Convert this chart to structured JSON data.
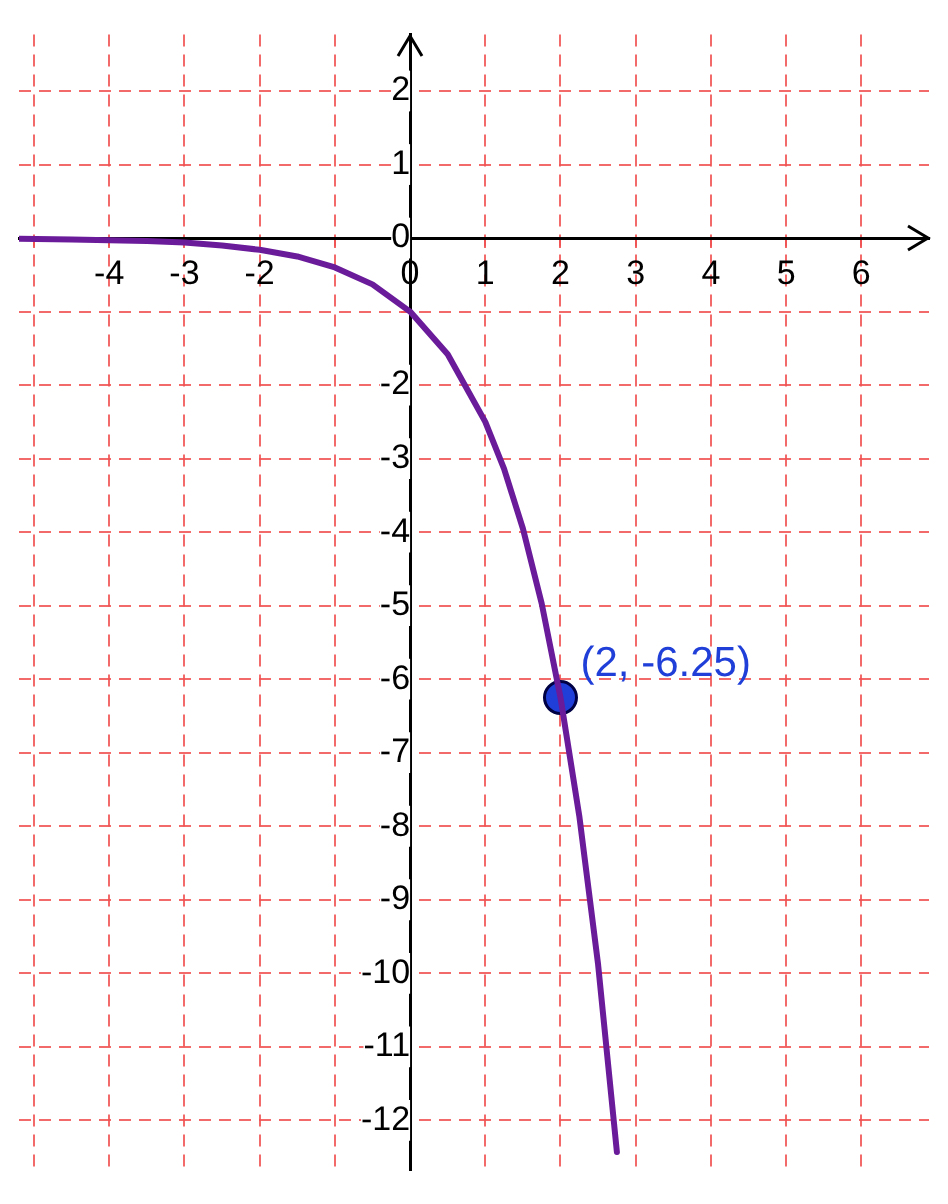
{
  "chart_data": {
    "type": "line",
    "xlim": [
      -5.2,
      6.9
    ],
    "ylim": [
      -12.67,
      2.77
    ],
    "xticks": [
      {
        "value": -5,
        "label": null
      },
      -4,
      -3,
      -2,
      {
        "value": -1,
        "label": null
      },
      0,
      1,
      2,
      3,
      4,
      5,
      6
    ],
    "yticks": [
      -12,
      -11,
      -10,
      -9,
      -8,
      -7,
      -6,
      -5,
      -4,
      -3,
      -2,
      {
        "value": -1,
        "label": null
      },
      0,
      1,
      2
    ],
    "grid": true,
    "legend": false,
    "series": [
      {
        "type": "line",
        "color": "#6a1b9a",
        "marker": "none",
        "line_style": "solid",
        "x": [
          -5.2,
          -4.5,
          -4,
          -3.5,
          -3,
          -2.5,
          -2,
          -1.5,
          -1,
          -0.5,
          0,
          0.5,
          1,
          1.25,
          1.5,
          1.75,
          2,
          2.25,
          2.5,
          2.75
        ],
        "values": [
          -0.01,
          -0.02,
          -0.03,
          -0.04,
          -0.06,
          -0.1,
          -0.16,
          -0.25,
          -0.4,
          -0.63,
          -1,
          -1.58,
          -2.5,
          -3.14,
          -3.95,
          -4.97,
          -6.25,
          -7.86,
          -9.88,
          -12.43
        ]
      },
      {
        "type": "scatter",
        "color": "#1f3fd8",
        "marker": "circle",
        "x": [
          2
        ],
        "values": [
          -6.25
        ]
      }
    ],
    "annotations": [
      {
        "text": "(2, -6.25)",
        "x": 2,
        "y": -6.25
      }
    ]
  }
}
